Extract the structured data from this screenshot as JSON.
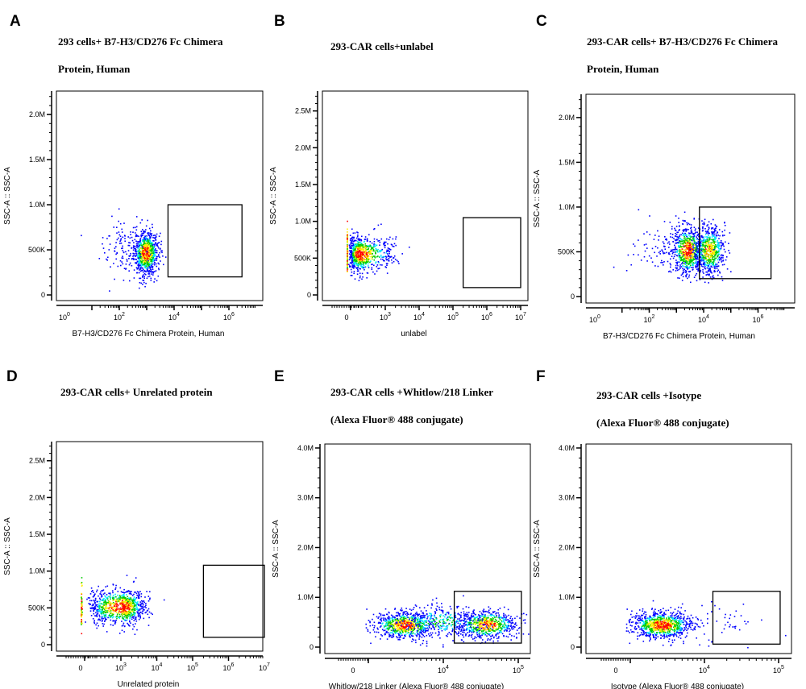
{
  "chart_data": [
    {
      "type": "scatter",
      "letter": "A",
      "title": [
        "293 cells+ B7-H3/CD276 Fc Chimera",
        "Protein, Human"
      ],
      "xlabel": "B7-H3/CD276 Fc Chimera Protein, Human",
      "ylabel": "SSC-A :: SSC-A",
      "xscale": "log",
      "xticks": [
        {
          "base": "10",
          "exp": "0"
        },
        {
          "base": "10",
          "exp": "2"
        },
        {
          "base": "10",
          "exp": "4"
        },
        {
          "base": "10",
          "exp": "6"
        }
      ],
      "xtick_values": [
        1,
        100,
        10000,
        1000000
      ],
      "yticks": [
        0,
        500000,
        1000000,
        1500000,
        2000000
      ],
      "ytick_labels": [
        "0",
        "500K",
        "1.0M",
        "1.5M",
        "2.0M"
      ],
      "ylim": [
        0,
        2260000
      ],
      "gate": {
        "x": [
          6000,
          3000000
        ],
        "y": [
          200000,
          1000000
        ]
      },
      "populations": [
        {
          "x_median": 900,
          "x_log_sd": 0.22,
          "y_mean": 470000,
          "y_sd": 115000,
          "n": 850
        },
        {
          "x_median": 180,
          "x_log_sd": 0.5,
          "y_mean": 520000,
          "y_sd": 160000,
          "n": 130
        }
      ]
    },
    {
      "type": "scatter",
      "letter": "B",
      "title": [
        "293-CAR cells+unlabel"
      ],
      "xlabel": "unlabel",
      "ylabel": "SSC-A :: SSC-A",
      "xscale": "biexponential",
      "xticks": [
        {
          "base": "0",
          "exp": ""
        },
        {
          "base": "10",
          "exp": "3"
        },
        {
          "base": "10",
          "exp": "4"
        },
        {
          "base": "10",
          "exp": "5"
        },
        {
          "base": "10",
          "exp": "6"
        },
        {
          "base": "10",
          "exp": "7"
        }
      ],
      "xtick_values": [
        0,
        1000,
        10000,
        100000,
        1000000,
        10000000
      ],
      "yticks": [
        0,
        500000,
        1000000,
        1500000,
        2000000,
        2500000
      ],
      "ytick_labels": [
        "0",
        "500K",
        "1.0M",
        "1.5M",
        "2.0M",
        "2.5M"
      ],
      "ylim": [
        0,
        2770000
      ],
      "gate": {
        "x": [
          200000,
          10000000
        ],
        "y": [
          100000,
          1050000
        ]
      },
      "populations": [
        {
          "x_median": 350,
          "x_log_sd": 0.3,
          "y_mean": 560000,
          "y_sd": 120000,
          "n": 800
        },
        {
          "x_median": 0,
          "x_linear_sd": 15,
          "y_mean": 580000,
          "y_sd": 130000,
          "n": 140
        }
      ]
    },
    {
      "type": "scatter",
      "letter": "C",
      "title": [
        "293-CAR cells+ B7-H3/CD276 Fc Chimera",
        "Protein, Human"
      ],
      "xlabel": "B7-H3/CD276 Fc Chimera Protein, Human",
      "ylabel": "SSC-A :: SSC-A",
      "xscale": "log",
      "xticks": [
        {
          "base": "10",
          "exp": "0"
        },
        {
          "base": "10",
          "exp": "2"
        },
        {
          "base": "10",
          "exp": "4"
        },
        {
          "base": "10",
          "exp": "6"
        }
      ],
      "xtick_values": [
        1,
        100,
        10000,
        1000000
      ],
      "yticks": [
        0,
        500000,
        1000000,
        1500000,
        2000000
      ],
      "ytick_labels": [
        "0",
        "500K",
        "1.0M",
        "1.5M",
        "2.0M"
      ],
      "ylim": [
        0,
        2260000
      ],
      "gate": {
        "x": [
          7000,
          3000000
        ],
        "y": [
          200000,
          1000000
        ]
      },
      "populations": [
        {
          "x_median": 2500,
          "x_log_sd": 0.28,
          "y_mean": 520000,
          "y_sd": 130000,
          "n": 700
        },
        {
          "x_median": 16000,
          "x_log_sd": 0.28,
          "y_mean": 520000,
          "y_sd": 130000,
          "n": 600
        },
        {
          "x_median": 300,
          "x_log_sd": 0.6,
          "y_mean": 520000,
          "y_sd": 160000,
          "n": 100
        }
      ]
    },
    {
      "type": "scatter",
      "letter": "D",
      "title": [
        "293-CAR cells+ Unrelated protein"
      ],
      "xlabel": "Unrelated protein",
      "ylabel": "SSC-A :: SSC-A",
      "xscale": "biexponential",
      "xticks": [
        {
          "base": "0",
          "exp": ""
        },
        {
          "base": "10",
          "exp": "3"
        },
        {
          "base": "10",
          "exp": "4"
        },
        {
          "base": "10",
          "exp": "5"
        },
        {
          "base": "10",
          "exp": "6"
        },
        {
          "base": "10",
          "exp": "7"
        }
      ],
      "xtick_values": [
        0,
        1000,
        10000,
        100000,
        1000000,
        10000000
      ],
      "yticks": [
        0,
        500000,
        1000000,
        1500000,
        2000000,
        2500000
      ],
      "ytick_labels": [
        "0",
        "500K",
        "1.0M",
        "1.5M",
        "2.0M",
        "2.5M"
      ],
      "ylim": [
        0,
        2760000
      ],
      "gate": {
        "x": [
          200000,
          10000000
        ],
        "y": [
          100000,
          1080000
        ]
      },
      "populations": [
        {
          "x_median": 1100,
          "x_log_sd": 0.3,
          "y_mean": 520000,
          "y_sd": 120000,
          "n": 900
        },
        {
          "x_median": 0,
          "x_linear_sd": 40,
          "y_mean": 500000,
          "y_sd": 150000,
          "n": 60
        }
      ]
    },
    {
      "type": "scatter",
      "letter": "E",
      "title": [
        "293-CAR cells +Whitlow/218 Linker",
        "(Alexa Fluor® 488 conjugate)"
      ],
      "xlabel": "Whitlow/218 Linker (Alexa Fluor® 488 conjugate)",
      "ylabel": "SSC-A :: SSC-A",
      "xscale": "biexponential",
      "xticks": [
        {
          "base": "0",
          "exp": ""
        },
        {
          "base": "10",
          "exp": "4"
        },
        {
          "base": "10",
          "exp": "5"
        }
      ],
      "xtick_values": [
        0,
        10000,
        100000
      ],
      "yticks": [
        0,
        1000000,
        2000000,
        3000000,
        4000000
      ],
      "ytick_labels": [
        "0",
        "1.0M",
        "2.0M",
        "3.0M",
        "4.0M"
      ],
      "ylim": [
        0,
        4080000
      ],
      "gate": {
        "x": [
          14000,
          110000
        ],
        "y": [
          80000,
          1120000
        ]
      },
      "populations": [
        {
          "x_median": 3000,
          "x_log_sd": 0.2,
          "y_mean": 450000,
          "y_sd": 130000,
          "n": 700
        },
        {
          "x_median": 38000,
          "x_log_sd": 0.2,
          "y_mean": 460000,
          "y_sd": 140000,
          "n": 650
        },
        {
          "x_median": 9000,
          "x_log_sd": 0.3,
          "y_mean": 520000,
          "y_sd": 180000,
          "n": 350
        }
      ]
    },
    {
      "type": "scatter",
      "letter": "F",
      "title": [
        "293-CAR cells +Isotype",
        "(Alexa Fluor® 488 conjugate)"
      ],
      "xlabel": "Isotype (Alexa Fluor® 488 conjugate)",
      "ylabel": "SSC-A :: SSC-A",
      "xscale": "biexponential",
      "xticks": [
        {
          "base": "0",
          "exp": ""
        },
        {
          "base": "10",
          "exp": "4"
        },
        {
          "base": "10",
          "exp": "5"
        }
      ],
      "xtick_values": [
        0,
        10000,
        100000
      ],
      "yticks": [
        0,
        1000000,
        2000000,
        3000000,
        4000000
      ],
      "ytick_labels": [
        "0",
        "1.0M",
        "2.0M",
        "3.0M",
        "4.0M"
      ],
      "ylim": [
        0,
        4080000
      ],
      "gate": {
        "x": [
          13000,
          105000
        ],
        "y": [
          60000,
          1120000
        ]
      },
      "populations": [
        {
          "x_median": 2600,
          "x_log_sd": 0.2,
          "y_mean": 450000,
          "y_sd": 130000,
          "n": 900
        },
        {
          "x_median": 25000,
          "x_log_sd": 0.3,
          "y_mean": 500000,
          "y_sd": 220000,
          "n": 40
        }
      ]
    }
  ],
  "density_colors": [
    "#0000ff",
    "#00e5ff",
    "#00cc00",
    "#ffee00",
    "#ff0000"
  ]
}
